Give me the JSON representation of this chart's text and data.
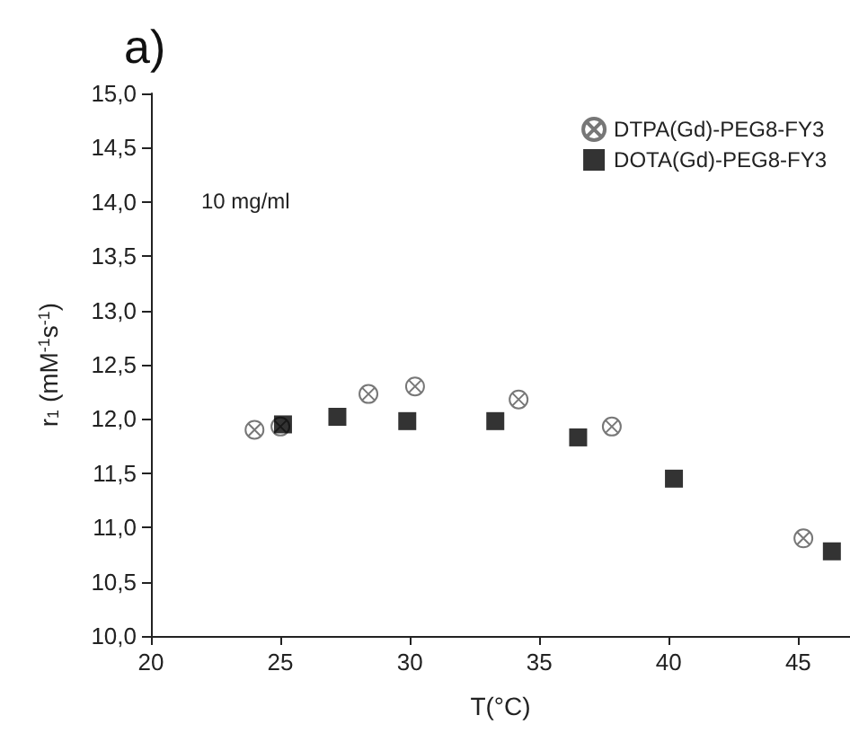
{
  "chart_data": {
    "type": "scatter",
    "title": "a)",
    "xlabel": "T(°C)",
    "ylabel": "r$_{1}$ (mM$^{-1}$s$^{-1}$)",
    "annotations": [
      "10 mg/ml"
    ],
    "series": [
      {
        "name": "DTPA(Gd)-PEG8-FY3",
        "color": "#555555",
        "marker": "cross",
        "x": [
          24.0,
          25.0,
          28.4,
          30.2,
          34.2,
          37.8,
          45.2
        ],
        "values": [
          11.9,
          11.93,
          12.23,
          12.3,
          12.18,
          11.93,
          10.9
        ]
      },
      {
        "name": "DOTA(Gd)-PEG8-FY3",
        "color": "#000000",
        "marker": "square",
        "x": [
          25.1,
          27.2,
          29.9,
          33.3,
          36.5,
          40.2,
          46.3
        ],
        "values": [
          11.95,
          12.02,
          11.98,
          11.98,
          11.83,
          11.45,
          10.78
        ]
      }
    ],
    "xlim": [
      20,
      47
    ],
    "xticks": [
      20,
      25,
      30,
      35,
      40,
      45
    ],
    "ylim": [
      10,
      15
    ],
    "yticks": [
      {
        "value": 10,
        "label": "10,0"
      },
      {
        "value": 10.5,
        "label": "10,5"
      },
      {
        "value": 11,
        "label": "11,0"
      },
      {
        "value": 11.5,
        "label": "11,5"
      },
      {
        "value": 12,
        "label": "12,0"
      },
      {
        "value": 12.5,
        "label": "12,5"
      },
      {
        "value": 13,
        "label": "13,0"
      },
      {
        "value": 13.5,
        "label": "13,5"
      },
      {
        "value": 14,
        "label": "14,0"
      },
      {
        "value": 14.5,
        "label": "14,5"
      },
      {
        "value": 15,
        "label": "15,0"
      }
    ],
    "grid": false,
    "legend": "top right"
  }
}
